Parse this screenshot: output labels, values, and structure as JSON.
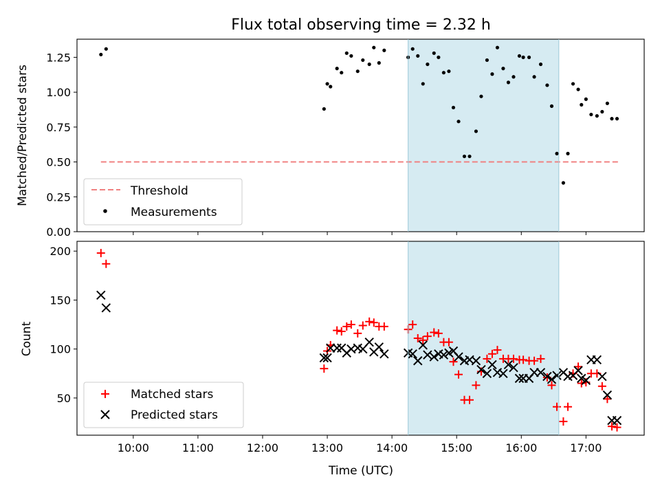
{
  "chart_data": {
    "title": "Flux total observing time = 2.32 h",
    "xlabel": "Time (UTC)",
    "x_unit": "hours UTC",
    "xlim": [
      9.13,
      17.9
    ],
    "x_ticks": [
      10,
      11,
      12,
      13,
      14,
      15,
      16,
      17
    ],
    "x_tick_labels": [
      "10:00",
      "11:00",
      "12:00",
      "13:00",
      "14:00",
      "15:00",
      "16:00",
      "17:00"
    ],
    "shaded_interval": [
      14.25,
      16.58
    ],
    "shade_color": "#add8e6",
    "panels": [
      {
        "type": "scatter",
        "ylabel": "Matched/Predicted stars",
        "ylim": [
          0,
          1.38
        ],
        "y_ticks": [
          0,
          0.25,
          0.5,
          0.75,
          1.0,
          1.25
        ],
        "y_tick_labels": [
          "0.00",
          "0.25",
          "0.50",
          "0.75",
          "1.00",
          "1.25"
        ],
        "legend_position": "lower-left",
        "threshold": {
          "name": "Threshold",
          "value": 0.5,
          "x_range": [
            9.5,
            17.5
          ],
          "color": "#f08080"
        },
        "series": [
          {
            "name": "Measurements",
            "color": "#000000",
            "x": [
              9.5,
              9.58,
              12.95,
              13.0,
              13.05,
              13.15,
              13.22,
              13.3,
              13.37,
              13.47,
              13.55,
              13.65,
              13.72,
              13.8,
              13.88,
              14.25,
              14.32,
              14.4,
              14.48,
              14.55,
              14.65,
              14.72,
              14.8,
              14.88,
              14.95,
              15.03,
              15.12,
              15.2,
              15.3,
              15.38,
              15.47,
              15.55,
              15.63,
              15.72,
              15.8,
              15.88,
              15.97,
              16.03,
              16.12,
              16.2,
              16.3,
              16.4,
              16.47,
              16.55,
              16.65,
              16.72,
              16.8,
              16.88,
              16.93,
              17.0,
              17.08,
              17.17,
              17.25,
              17.33,
              17.4,
              17.48
            ],
            "values": [
              1.27,
              1.31,
              0.88,
              1.06,
              1.04,
              1.17,
              1.14,
              1.28,
              1.26,
              1.15,
              1.23,
              1.2,
              1.32,
              1.21,
              1.3,
              1.25,
              1.31,
              1.26,
              1.06,
              1.2,
              1.28,
              1.25,
              1.14,
              1.15,
              0.89,
              0.79,
              0.54,
              0.54,
              0.72,
              0.97,
              1.23,
              1.13,
              1.32,
              1.17,
              1.07,
              1.11,
              1.26,
              1.25,
              1.25,
              1.11,
              1.2,
              1.05,
              0.9,
              0.56,
              0.35,
              0.56,
              1.06,
              1.02,
              0.91,
              0.95,
              0.84,
              0.83,
              0.86,
              0.92,
              0.81,
              0.81
            ]
          }
        ]
      },
      {
        "type": "scatter",
        "ylabel": "Count",
        "ylim": [
          12,
          210
        ],
        "y_ticks": [
          50,
          100,
          150,
          200
        ],
        "y_tick_labels": [
          "50",
          "100",
          "150",
          "200"
        ],
        "legend_position": "lower-left",
        "series": [
          {
            "name": "Matched stars",
            "marker": "+",
            "color": "#ff0000",
            "x": [
              9.5,
              9.58,
              12.95,
              13.0,
              13.05,
              13.15,
              13.22,
              13.3,
              13.37,
              13.47,
              13.55,
              13.65,
              13.72,
              13.8,
              13.88,
              14.25,
              14.32,
              14.4,
              14.48,
              14.55,
              14.65,
              14.72,
              14.8,
              14.88,
              14.95,
              15.03,
              15.12,
              15.2,
              15.3,
              15.38,
              15.47,
              15.55,
              15.63,
              15.72,
              15.8,
              15.88,
              15.97,
              16.03,
              16.12,
              16.2,
              16.3,
              16.4,
              16.47,
              16.55,
              16.65,
              16.72,
              16.8,
              16.88,
              16.93,
              17.0,
              17.08,
              17.17,
              17.25,
              17.33,
              17.4,
              17.48
            ],
            "values": [
              198,
              187,
              80,
              98,
              104,
              119,
              118,
              123,
              125,
              116,
              124,
              128,
              127,
              123,
              123,
              120,
              125,
              111,
              109,
              113,
              117,
              116,
              107,
              107,
              87,
              74,
              48,
              48,
              63,
              77,
              90,
              95,
              99,
              90,
              90,
              90,
              89,
              89,
              88,
              88,
              90,
              71,
              63,
              41,
              26,
              41,
              75,
              82,
              65,
              66,
              75,
              75,
              62,
              49,
              21,
              20
            ]
          },
          {
            "name": "Predicted stars",
            "marker": "x",
            "color": "#000000",
            "x": [
              9.5,
              9.58,
              12.95,
              13.0,
              13.05,
              13.15,
              13.22,
              13.3,
              13.37,
              13.47,
              13.55,
              13.65,
              13.72,
              13.8,
              13.88,
              14.25,
              14.32,
              14.4,
              14.48,
              14.55,
              14.65,
              14.72,
              14.8,
              14.88,
              14.95,
              15.03,
              15.12,
              15.2,
              15.3,
              15.38,
              15.47,
              15.55,
              15.63,
              15.72,
              15.8,
              15.88,
              15.97,
              16.03,
              16.12,
              16.2,
              16.3,
              16.4,
              16.47,
              16.55,
              16.65,
              16.72,
              16.8,
              16.88,
              16.93,
              17.0,
              17.08,
              17.17,
              17.25,
              17.33,
              17.4,
              17.48
            ],
            "values": [
              155,
              142,
              91,
              91,
              101,
              101,
              101,
              96,
              100,
              101,
              100,
              107,
              97,
              102,
              95,
              96,
              95,
              88,
              104,
              94,
              92,
              95,
              94,
              96,
              98,
              92,
              88,
              89,
              88,
              79,
              75,
              84,
              76,
              75,
              84,
              81,
              70,
              70,
              70,
              76,
              76,
              72,
              69,
              73,
              76,
              72,
              73,
              78,
              70,
              68,
              89,
              89,
              72,
              53,
              27,
              27
            ]
          }
        ]
      }
    ]
  }
}
